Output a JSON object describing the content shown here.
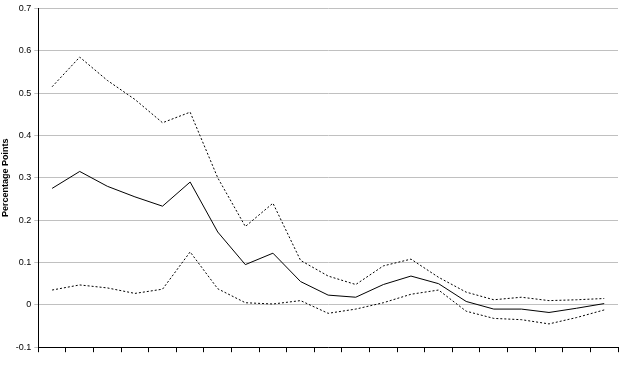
{
  "chart_data": {
    "type": "line",
    "y_label": "Percentage Points",
    "categories": [
      null,
      null,
      null,
      null,
      null,
      null,
      null,
      null,
      null,
      null,
      null,
      null,
      null,
      null,
      null,
      null,
      null,
      null,
      null,
      null,
      null
    ],
    "series": [
      {
        "color": "#000000",
        "line_style": "dotted",
        "values": [
          0.515,
          0.585,
          0.53,
          0.485,
          0.43,
          0.455,
          0.3,
          0.185,
          0.24,
          0.105,
          0.068,
          0.048,
          0.092,
          0.108,
          0.065,
          0.03,
          0.012,
          0.018,
          0.01,
          0.012,
          0.015
        ]
      },
      {
        "color": "#000000",
        "line_style": "solid",
        "values": [
          0.275,
          0.315,
          0.28,
          0.255,
          0.233,
          0.29,
          0.172,
          0.095,
          0.122,
          0.055,
          0.023,
          0.018,
          0.048,
          0.068,
          0.05,
          0.008,
          -0.01,
          -0.01,
          -0.018,
          -0.008,
          0.003
        ]
      },
      {
        "color": "#000000",
        "line_style": "dotted",
        "values": [
          0.035,
          0.047,
          0.04,
          0.027,
          0.037,
          0.125,
          0.038,
          0.005,
          0.002,
          0.01,
          -0.02,
          -0.01,
          0.005,
          0.025,
          0.035,
          -0.015,
          -0.032,
          -0.035,
          -0.045,
          -0.03,
          -0.012
        ]
      }
    ],
    "ylim": [
      -0.1,
      0.7
    ],
    "yticks": [
      -0.1,
      0,
      0.1,
      0.2,
      0.3,
      0.4,
      0.5,
      0.6,
      0.7
    ],
    "grid": true,
    "legend": false
  }
}
